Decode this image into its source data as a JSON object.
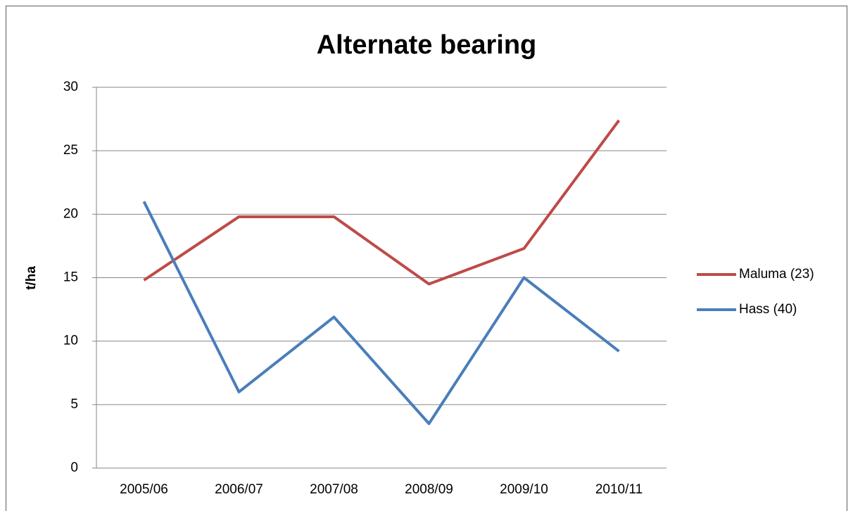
{
  "chart_data": {
    "type": "line",
    "title": "Alternate bearing",
    "y_label": "t/ha",
    "categories": [
      "2005/06",
      "2006/07",
      "2007/08",
      "2008/09",
      "2009/10",
      "2010/11"
    ],
    "series": [
      {
        "name": "Maluma (23)",
        "color": "#be4b48",
        "values": [
          14.8,
          19.8,
          19.8,
          14.5,
          17.3,
          27.4
        ]
      },
      {
        "name": "Hass (40)",
        "color": "#4a7ebb",
        "values": [
          21.0,
          6.0,
          11.9,
          3.5,
          15.0,
          9.2
        ]
      }
    ],
    "ylim": [
      0,
      30
    ],
    "yticks": [
      0,
      5,
      10,
      15,
      20,
      25,
      30
    ],
    "grid": true,
    "legend": "right"
  }
}
